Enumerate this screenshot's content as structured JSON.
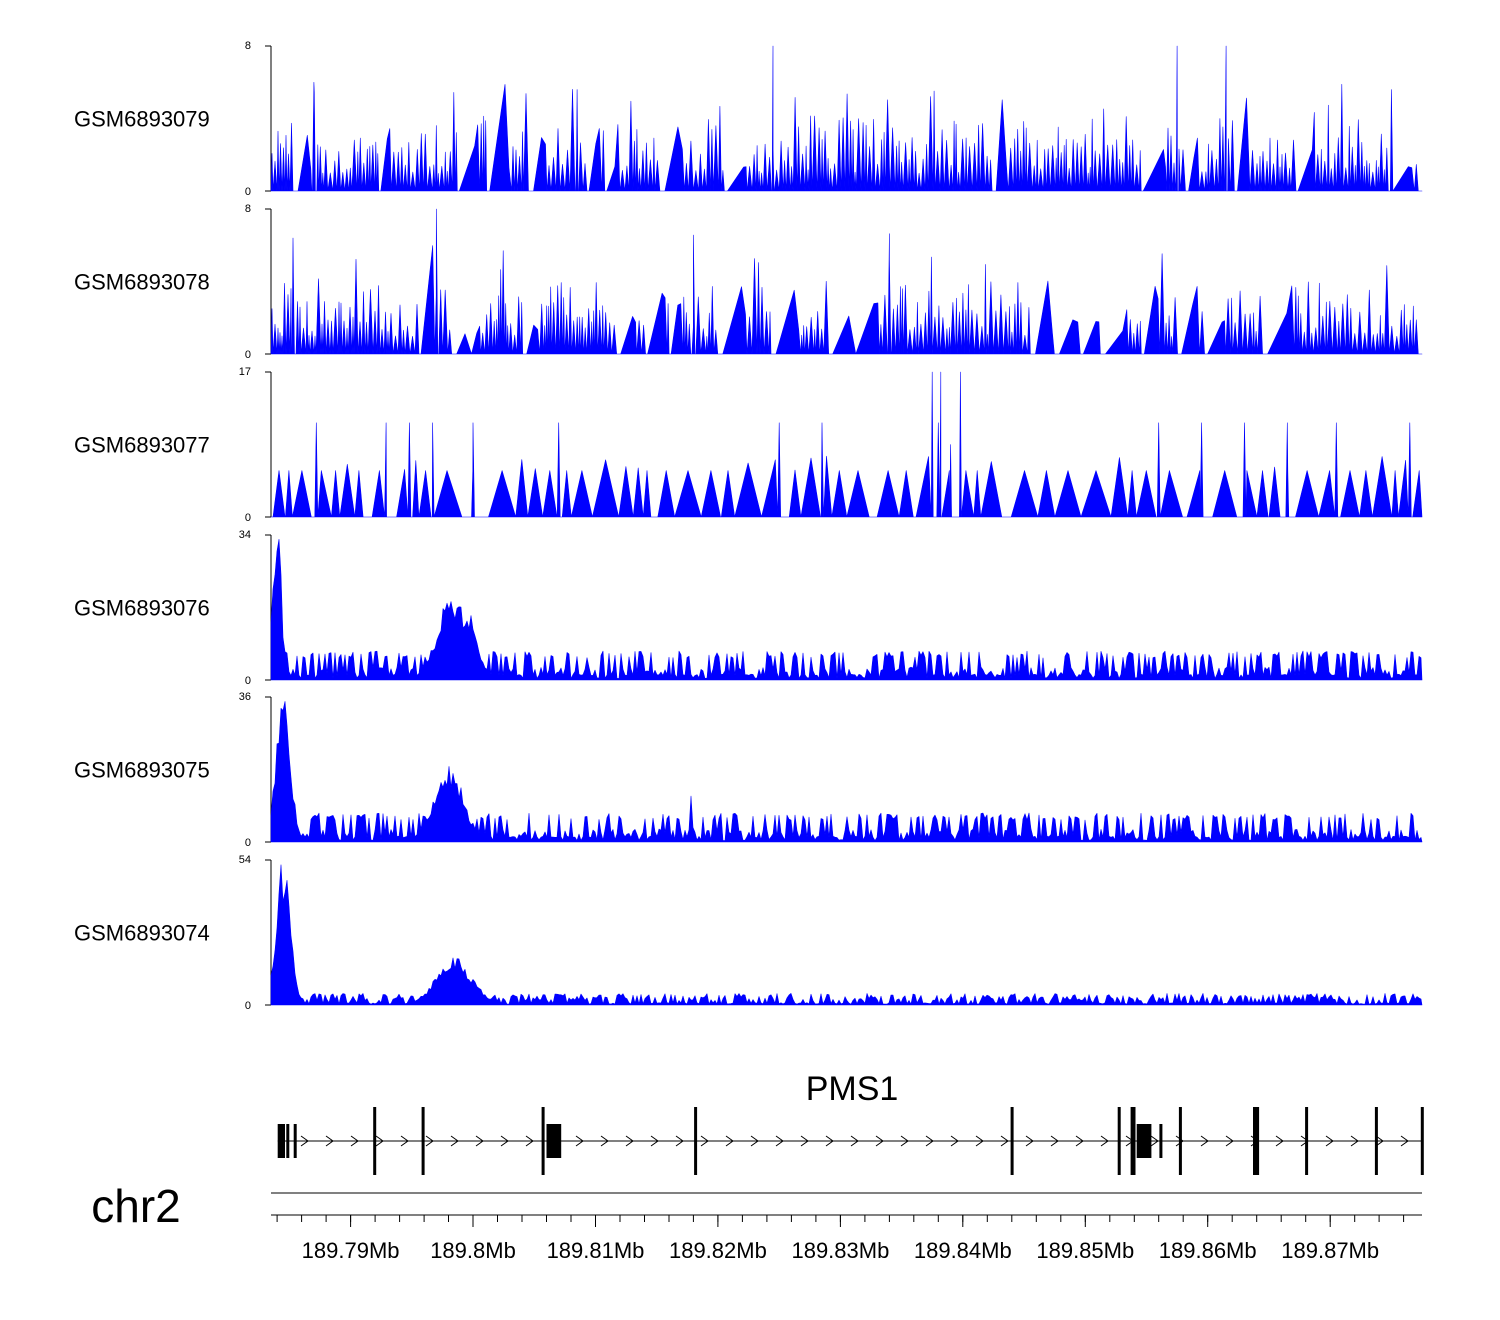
{
  "colors": {
    "signal": "#0000ff",
    "gene": "#000000",
    "axis": "#000000"
  },
  "chart_data": {
    "type": "area",
    "chromosome": "chr2",
    "gene": "PMS1",
    "x_range_mb": [
      189.7835,
      189.8775
    ],
    "series": [
      {
        "name": "GSM6893079",
        "ylim": [
          0,
          8
        ],
        "ytick_labels": [
          "0",
          "8"
        ]
      },
      {
        "name": "GSM6893078",
        "ylim": [
          0,
          8
        ],
        "ytick_labels": [
          "0",
          "8"
        ]
      },
      {
        "name": "GSM6893077",
        "ylim": [
          0,
          17
        ],
        "ytick_labels": [
          "0",
          "17"
        ]
      },
      {
        "name": "GSM6893076",
        "ylim": [
          0,
          34
        ],
        "ytick_labels": [
          "0",
          "34"
        ]
      },
      {
        "name": "GSM6893075",
        "ylim": [
          0,
          36
        ],
        "ytick_labels": [
          "0",
          "36"
        ]
      },
      {
        "name": "GSM6893074",
        "ylim": [
          0,
          54
        ],
        "ytick_labels": [
          "0",
          "54"
        ]
      }
    ],
    "x_ticks": [
      {
        "value": 189.79,
        "label": "189.79Mb"
      },
      {
        "value": 189.8,
        "label": "189.8Mb"
      },
      {
        "value": 189.81,
        "label": "189.81Mb"
      },
      {
        "value": 189.82,
        "label": "189.82Mb"
      },
      {
        "value": 189.83,
        "label": "189.83Mb"
      },
      {
        "value": 189.84,
        "label": "189.84Mb"
      },
      {
        "value": 189.85,
        "label": "189.85Mb"
      },
      {
        "value": 189.86,
        "label": "189.86Mb"
      },
      {
        "value": 189.87,
        "label": "189.87Mb"
      }
    ],
    "exons_mb": [
      [
        189.78405,
        189.78465
      ],
      [
        189.78475,
        189.78487
      ],
      [
        189.78535,
        189.78545
      ],
      [
        189.79185,
        189.792
      ],
      [
        189.7958,
        189.796
      ],
      [
        189.8056,
        189.8058
      ],
      [
        189.806,
        189.8072
      ],
      [
        189.81805,
        189.8182
      ],
      [
        189.8439,
        189.84405
      ],
      [
        189.85265,
        189.8528
      ],
      [
        189.8537,
        189.8541
      ],
      [
        189.8542,
        189.8554
      ],
      [
        189.85605,
        189.85612
      ],
      [
        189.85765,
        189.8578
      ],
      [
        189.8637,
        189.8642
      ],
      [
        189.86795,
        189.8681
      ],
      [
        189.87365,
        189.8738
      ],
      [
        189.8774,
        189.8776
      ]
    ]
  }
}
